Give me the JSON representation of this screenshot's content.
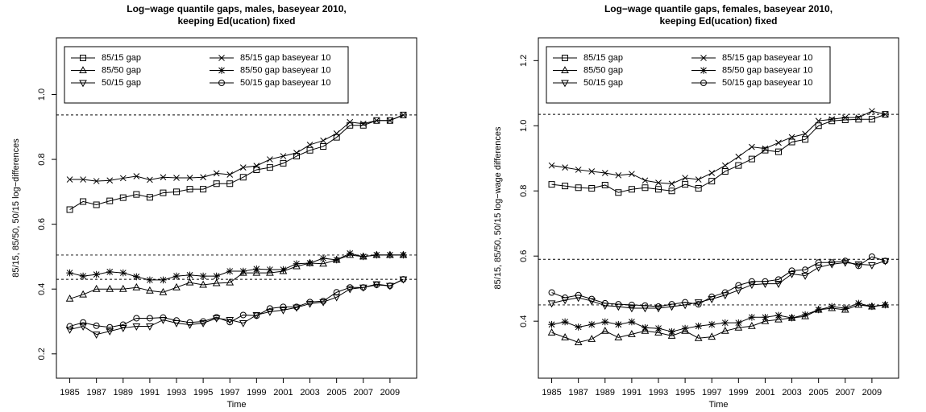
{
  "chart_data": [
    {
      "type": "line",
      "title": [
        "Log−wage quantile gaps, males, baseyear 2010,",
        "keeping Ed(ucation) fixed"
      ],
      "xlabel": "Time",
      "ylabel": "85/15, 85/50, 50/15 log−differences",
      "x": [
        1985,
        1986,
        1987,
        1988,
        1989,
        1990,
        1991,
        1992,
        1993,
        1994,
        1995,
        1996,
        1997,
        1998,
        1999,
        2000,
        2001,
        2002,
        2003,
        2004,
        2005,
        2006,
        2007,
        2008,
        2009,
        2010
      ],
      "xlim": [
        1984,
        2011
      ],
      "xticks": [
        1985,
        1987,
        1989,
        1991,
        1993,
        1995,
        1997,
        1999,
        2001,
        2003,
        2005,
        2007,
        2009
      ],
      "ylim": [
        0.125,
        1.175
      ],
      "yticks": [
        0.2,
        0.4,
        0.6,
        0.8,
        {
          "value": 1,
          "label": "1.0"
        }
      ],
      "hlines": [
        0.937,
        0.505,
        0.43
      ],
      "legend": "topleft",
      "series": [
        {
          "name": "85/15 gap",
          "marker": "square",
          "color": "#000000",
          "values": [
            0.645,
            0.67,
            0.66,
            0.672,
            0.682,
            0.692,
            0.683,
            0.697,
            0.7,
            0.708,
            0.708,
            0.725,
            0.725,
            0.745,
            0.768,
            0.775,
            0.788,
            0.81,
            0.828,
            0.84,
            0.868,
            0.905,
            0.905,
            0.92,
            0.92,
            0.937
          ]
        },
        {
          "name": "85/50 gap",
          "marker": "triangle",
          "color": "#000000",
          "values": [
            0.37,
            0.383,
            0.4,
            0.4,
            0.4,
            0.405,
            0.395,
            0.39,
            0.405,
            0.42,
            0.413,
            0.418,
            0.42,
            0.45,
            0.45,
            0.45,
            0.455,
            0.47,
            0.48,
            0.478,
            0.49,
            0.505,
            0.5,
            0.505,
            0.505,
            0.505
          ]
        },
        {
          "name": "50/15 gap",
          "marker": "inverted-triangle",
          "color": "#000000",
          "values": [
            0.275,
            0.285,
            0.26,
            0.27,
            0.28,
            0.285,
            0.285,
            0.305,
            0.295,
            0.29,
            0.295,
            0.31,
            0.305,
            0.295,
            0.32,
            0.33,
            0.335,
            0.343,
            0.355,
            0.36,
            0.375,
            0.4,
            0.405,
            0.415,
            0.41,
            0.43
          ]
        },
        {
          "name": "85/15 gap baseyear 10",
          "marker": "cross",
          "color": "#000000",
          "values": [
            0.738,
            0.738,
            0.733,
            0.735,
            0.742,
            0.748,
            0.737,
            0.745,
            0.743,
            0.743,
            0.745,
            0.757,
            0.753,
            0.775,
            0.78,
            0.8,
            0.81,
            0.82,
            0.845,
            0.858,
            0.88,
            0.915,
            0.91,
            0.92,
            0.92,
            0.937
          ]
        },
        {
          "name": "85/50 gap baseyear 10",
          "marker": "star",
          "color": "#000000",
          "values": [
            0.45,
            0.44,
            0.445,
            0.453,
            0.45,
            0.438,
            0.428,
            0.428,
            0.44,
            0.443,
            0.44,
            0.44,
            0.455,
            0.455,
            0.462,
            0.46,
            0.46,
            0.478,
            0.48,
            0.495,
            0.49,
            0.51,
            0.5,
            0.505,
            0.505,
            0.505
          ]
        },
        {
          "name": "50/15 gap baseyear 10",
          "marker": "circle",
          "color": "#000000",
          "values": [
            0.285,
            0.297,
            0.287,
            0.282,
            0.29,
            0.31,
            0.31,
            0.312,
            0.303,
            0.297,
            0.3,
            0.313,
            0.298,
            0.32,
            0.318,
            0.34,
            0.345,
            0.345,
            0.36,
            0.363,
            0.39,
            0.405,
            0.405,
            0.413,
            0.41,
            0.43
          ]
        }
      ]
    },
    {
      "type": "line",
      "title": [
        "Log−wage quantile gaps, females, baseyear 2010,",
        "keeping Ed(ucation) fixed"
      ],
      "xlabel": "Time",
      "ylabel": "85/15, 85/50, 50/15 log−wage differences",
      "x": [
        1985,
        1986,
        1987,
        1988,
        1989,
        1990,
        1991,
        1992,
        1993,
        1994,
        1995,
        1996,
        1997,
        1998,
        1999,
        2000,
        2001,
        2002,
        2003,
        2004,
        2005,
        2006,
        2007,
        2008,
        2009,
        2010
      ],
      "xlim": [
        1984,
        2011
      ],
      "xticks": [
        1985,
        1987,
        1989,
        1991,
        1993,
        1995,
        1997,
        1999,
        2001,
        2003,
        2005,
        2007,
        2009
      ],
      "ylim": [
        0.225,
        1.27
      ],
      "yticks": [
        0.4,
        0.6,
        0.8,
        {
          "value": 1,
          "label": "1.0"
        },
        1.2
      ],
      "hlines": [
        1.035,
        0.59,
        0.45
      ],
      "legend": "topleft",
      "series": [
        {
          "name": "85/15 gap",
          "marker": "square",
          "color": "#000000",
          "values": [
            0.82,
            0.815,
            0.81,
            0.808,
            0.818,
            0.795,
            0.805,
            0.81,
            0.805,
            0.8,
            0.82,
            0.808,
            0.83,
            0.86,
            0.878,
            0.898,
            0.925,
            0.92,
            0.95,
            0.958,
            1.0,
            1.015,
            1.018,
            1.02,
            1.02,
            1.035
          ]
        },
        {
          "name": "85/50 gap",
          "marker": "triangle",
          "color": "#000000",
          "values": [
            0.365,
            0.35,
            0.335,
            0.345,
            0.37,
            0.35,
            0.36,
            0.37,
            0.365,
            0.355,
            0.37,
            0.348,
            0.352,
            0.37,
            0.38,
            0.385,
            0.4,
            0.405,
            0.41,
            0.415,
            0.435,
            0.44,
            0.435,
            0.45,
            0.445,
            0.45
          ]
        },
        {
          "name": "50/15 gap",
          "marker": "inverted-triangle",
          "color": "#000000",
          "values": [
            0.455,
            0.465,
            0.472,
            0.462,
            0.448,
            0.445,
            0.44,
            0.44,
            0.44,
            0.445,
            0.45,
            0.458,
            0.468,
            0.48,
            0.495,
            0.512,
            0.515,
            0.515,
            0.545,
            0.54,
            0.565,
            0.575,
            0.58,
            0.575,
            0.572,
            0.585
          ]
        },
        {
          "name": "85/15 gap baseyear 10",
          "marker": "cross",
          "color": "#000000",
          "values": [
            0.878,
            0.872,
            0.865,
            0.86,
            0.855,
            0.848,
            0.852,
            0.832,
            0.825,
            0.822,
            0.84,
            0.835,
            0.855,
            0.878,
            0.905,
            0.935,
            0.93,
            0.948,
            0.965,
            0.975,
            1.015,
            1.02,
            1.025,
            1.025,
            1.045,
            1.035
          ]
        },
        {
          "name": "85/50 gap baseyear 10",
          "marker": "star",
          "color": "#000000",
          "values": [
            0.39,
            0.398,
            0.382,
            0.39,
            0.398,
            0.39,
            0.398,
            0.38,
            0.378,
            0.368,
            0.378,
            0.385,
            0.39,
            0.395,
            0.395,
            0.412,
            0.412,
            0.418,
            0.41,
            0.42,
            0.435,
            0.445,
            0.44,
            0.455,
            0.445,
            0.45
          ]
        },
        {
          "name": "50/15 gap baseyear 10",
          "marker": "circle",
          "color": "#000000",
          "values": [
            0.488,
            0.472,
            0.48,
            0.468,
            0.455,
            0.452,
            0.45,
            0.448,
            0.445,
            0.452,
            0.458,
            0.452,
            0.475,
            0.488,
            0.51,
            0.522,
            0.522,
            0.528,
            0.555,
            0.558,
            0.58,
            0.58,
            0.585,
            0.57,
            0.598,
            0.585
          ]
        }
      ]
    }
  ]
}
